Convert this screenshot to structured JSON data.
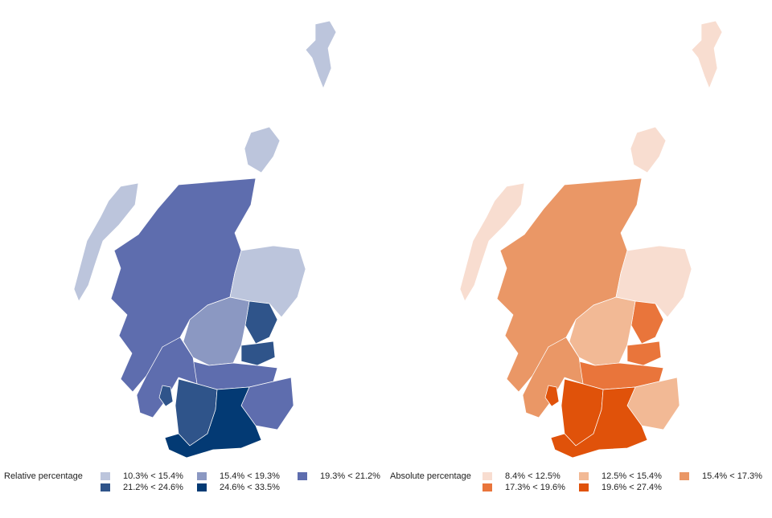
{
  "maps": [
    {
      "legend_title": "Relative percentage",
      "bins": [
        {
          "label": "10.3% < 15.4%",
          "color": "#bcc5dc"
        },
        {
          "label": "15.4% < 19.3%",
          "color": "#8b98c2"
        },
        {
          "label": "19.3% < 21.2%",
          "color": "#5e6dae"
        },
        {
          "label": "21.2% < 24.6%",
          "color": "#2f548a"
        },
        {
          "label": "24.6% < 33.5%",
          "color": "#033a74"
        }
      ]
    },
    {
      "legend_title": "Absolute percentage",
      "bins": [
        {
          "label": "8.4% < 12.5%",
          "color": "#f8ddd0"
        },
        {
          "label": "12.5% < 15.4%",
          "color": "#f2b995"
        },
        {
          "label": "15.4% < 17.3%",
          "color": "#ea9766"
        },
        {
          "label": "17.3% < 19.6%",
          "color": "#e9753b"
        },
        {
          "label": "19.6% < 27.4%",
          "color": "#e0520a"
        }
      ]
    }
  ]
}
